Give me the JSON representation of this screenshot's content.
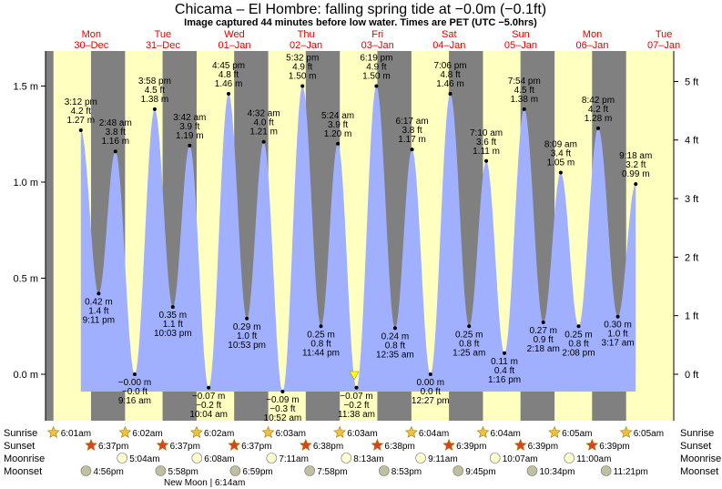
{
  "header": {
    "title": "Chicama – El Hombre: falling  spring tide at −0.0m (−0.1ft)",
    "subtitle": "Image captured 44 minutes before low water. Times are PET (UTC −5.0hrs)"
  },
  "colors": {
    "night": "#808080",
    "day": "#ffffc0",
    "tide": "#a0b0ff",
    "date_text": "#e00000",
    "sun_marker": "#f0c040",
    "sunset_marker": "#e04020",
    "moonrise_marker": "#ffffd0",
    "moonset_marker": "#c0c0a0",
    "now_marker": "#ffff00"
  },
  "days": [
    {
      "dow": "Mon",
      "date": "30–Dec"
    },
    {
      "dow": "Tue",
      "date": "31–Dec"
    },
    {
      "dow": "Wed",
      "date": "01–Jan"
    },
    {
      "dow": "Thu",
      "date": "02–Jan"
    },
    {
      "dow": "Fri",
      "date": "03–Jan"
    },
    {
      "dow": "Sat",
      "date": "04–Jan"
    },
    {
      "dow": "Sun",
      "date": "05–Jan"
    },
    {
      "dow": "Mon",
      "date": "06–Jan"
    },
    {
      "dow": "Tue",
      "date": "07–Jan"
    }
  ],
  "chart_data": {
    "type": "area",
    "title": "Chicama – El Hombre: falling  spring tide at −0.0m (−0.1ft)",
    "y_left_unit": "m",
    "y_right_unit": "ft",
    "ylim_m": [
      -0.28,
      1.7
    ],
    "y_left_ticks": [
      {
        "v": 0.0,
        "label": "0.0 m"
      },
      {
        "v": 0.5,
        "label": "0.5 m"
      },
      {
        "v": 1.0,
        "label": "1.0 m"
      },
      {
        "v": 1.5,
        "label": "1.5 m"
      }
    ],
    "y_right_ticks": [
      {
        "v": 0,
        "label": "0 ft"
      },
      {
        "v": 1,
        "label": "1 ft"
      },
      {
        "v": 2,
        "label": "2 ft"
      },
      {
        "v": 3,
        "label": "3 ft"
      },
      {
        "v": 4,
        "label": "4 ft"
      },
      {
        "v": 5,
        "label": "5 ft"
      }
    ],
    "tides": [
      {
        "type": "high",
        "day": 0,
        "time": "3:12 pm",
        "ft": "4.2 ft",
        "m": 1.27,
        "m_label": "1.27 m"
      },
      {
        "type": "low",
        "day": 0,
        "time": "9:11 pm",
        "ft": "1.4 ft",
        "m": 0.42,
        "m_label": "0.42 m"
      },
      {
        "type": "high",
        "day": 1,
        "time": "2:48 am",
        "ft": "3.8 ft",
        "m": 1.16,
        "m_label": "1.16 m"
      },
      {
        "type": "low",
        "day": 1,
        "time": "9:16 am",
        "ft": "−0.0 ft",
        "m": -0.0,
        "m_label": "−0.00 m"
      },
      {
        "type": "high",
        "day": 1,
        "time": "3:58 pm",
        "ft": "4.5 ft",
        "m": 1.38,
        "m_label": "1.38 m"
      },
      {
        "type": "low",
        "day": 1,
        "time": "10:03 pm",
        "ft": "1.1 ft",
        "m": 0.35,
        "m_label": "0.35 m"
      },
      {
        "type": "high",
        "day": 2,
        "time": "3:42 am",
        "ft": "3.9 ft",
        "m": 1.19,
        "m_label": "1.19 m"
      },
      {
        "type": "low",
        "day": 2,
        "time": "10:04 am",
        "ft": "−0.2 ft",
        "m": -0.07,
        "m_label": "−0.07 m"
      },
      {
        "type": "high",
        "day": 2,
        "time": "4:45 pm",
        "ft": "4.8 ft",
        "m": 1.46,
        "m_label": "1.46 m"
      },
      {
        "type": "low",
        "day": 2,
        "time": "10:53 pm",
        "ft": "1.0 ft",
        "m": 0.29,
        "m_label": "0.29 m"
      },
      {
        "type": "high",
        "day": 3,
        "time": "4:32 am",
        "ft": "4.0 ft",
        "m": 1.21,
        "m_label": "1.21 m"
      },
      {
        "type": "low",
        "day": 3,
        "time": "10:52 am",
        "ft": "−0.3 ft",
        "m": -0.09,
        "m_label": "−0.09 m"
      },
      {
        "type": "high",
        "day": 3,
        "time": "5:32 pm",
        "ft": "4.9 ft",
        "m": 1.5,
        "m_label": "1.50 m"
      },
      {
        "type": "low",
        "day": 3,
        "time": "11:44 pm",
        "ft": "0.8 ft",
        "m": 0.25,
        "m_label": "0.25 m"
      },
      {
        "type": "high",
        "day": 4,
        "time": "5:24 am",
        "ft": "3.9 ft",
        "m": 1.2,
        "m_label": "1.20 m"
      },
      {
        "type": "low",
        "day": 4,
        "time": "11:38 am",
        "ft": "−0.2 ft",
        "m": -0.07,
        "m_label": "−0.07 m"
      },
      {
        "type": "high",
        "day": 4,
        "time": "6:19 pm",
        "ft": "4.9 ft",
        "m": 1.5,
        "m_label": "1.50 m"
      },
      {
        "type": "low",
        "day": 5,
        "time": "12:35 am",
        "ft": "0.8 ft",
        "m": 0.24,
        "m_label": "0.24 m"
      },
      {
        "type": "high",
        "day": 5,
        "time": "6:17 am",
        "ft": "3.8 ft",
        "m": 1.17,
        "m_label": "1.17 m"
      },
      {
        "type": "low",
        "day": 5,
        "time": "12:27 pm",
        "ft": "0.0 ft",
        "m": 0.0,
        "m_label": "0.00 m"
      },
      {
        "type": "high",
        "day": 5,
        "time": "7:06 pm",
        "ft": "4.8 ft",
        "m": 1.46,
        "m_label": "1.46 m"
      },
      {
        "type": "low",
        "day": 6,
        "time": "1:25 am",
        "ft": "0.8 ft",
        "m": 0.25,
        "m_label": "0.25 m"
      },
      {
        "type": "high",
        "day": 6,
        "time": "7:10 am",
        "ft": "3.6 ft",
        "m": 1.11,
        "m_label": "1.11 m"
      },
      {
        "type": "low",
        "day": 6,
        "time": "1:16 pm",
        "ft": "0.4 ft",
        "m": 0.11,
        "m_label": "0.11 m"
      },
      {
        "type": "high",
        "day": 6,
        "time": "7:54 pm",
        "ft": "4.5 ft",
        "m": 1.38,
        "m_label": "1.38 m"
      },
      {
        "type": "low",
        "day": 7,
        "time": "2:18 am",
        "ft": "0.9 ft",
        "m": 0.27,
        "m_label": "0.27 m"
      },
      {
        "type": "high",
        "day": 7,
        "time": "8:09 am",
        "ft": "3.4 ft",
        "m": 1.05,
        "m_label": "1.05 m"
      },
      {
        "type": "low",
        "day": 7,
        "time": "2:08 pm",
        "ft": "0.8 ft",
        "m": 0.25,
        "m_label": "0.25 m"
      },
      {
        "type": "high",
        "day": 7,
        "time": "8:42 pm",
        "ft": "4.2 ft",
        "m": 1.28,
        "m_label": "1.28 m"
      },
      {
        "type": "low",
        "day": 8,
        "time": "3:17 am",
        "ft": "1.0 ft",
        "m": 0.3,
        "m_label": "0.30 m"
      },
      {
        "type": "high",
        "day": 8,
        "time": "9:18 am",
        "ft": "3.2 ft",
        "m": 0.99,
        "m_label": "0.99 m"
      }
    ],
    "now_marker": {
      "day": 4,
      "time": "10:54 am",
      "m": -0.0
    }
  },
  "sun_moon": {
    "row_labels": [
      "Sunrise",
      "Sunset",
      "Moonrise",
      "Moonset"
    ],
    "sunrise": [
      {
        "day": 0,
        "time": "6:01am"
      },
      {
        "day": 1,
        "time": "6:02am"
      },
      {
        "day": 2,
        "time": "6:02am"
      },
      {
        "day": 3,
        "time": "6:03am"
      },
      {
        "day": 4,
        "time": "6:03am"
      },
      {
        "day": 5,
        "time": "6:04am"
      },
      {
        "day": 6,
        "time": "6:04am"
      },
      {
        "day": 7,
        "time": "6:05am"
      },
      {
        "day": 8,
        "time": "6:05am"
      }
    ],
    "sunset": [
      {
        "day": 0,
        "time": "6:37pm"
      },
      {
        "day": 1,
        "time": "6:37pm"
      },
      {
        "day": 2,
        "time": "6:37pm"
      },
      {
        "day": 3,
        "time": "6:38pm"
      },
      {
        "day": 4,
        "time": "6:38pm"
      },
      {
        "day": 5,
        "time": "6:39pm"
      },
      {
        "day": 6,
        "time": "6:39pm"
      },
      {
        "day": 7,
        "time": "6:39pm"
      }
    ],
    "moonrise": [
      {
        "day": 1,
        "time": "5:04am"
      },
      {
        "day": 2,
        "time": "6:08am"
      },
      {
        "day": 3,
        "time": "7:11am"
      },
      {
        "day": 4,
        "time": "8:13am"
      },
      {
        "day": 5,
        "time": "9:11am"
      },
      {
        "day": 6,
        "time": "10:07am"
      },
      {
        "day": 7,
        "time": "11:00am"
      }
    ],
    "moonset": [
      {
        "day": 0,
        "time": "4:56pm"
      },
      {
        "day": 1,
        "time": "5:58pm"
      },
      {
        "day": 2,
        "time": "6:59pm"
      },
      {
        "day": 3,
        "time": "7:58pm"
      },
      {
        "day": 4,
        "time": "8:53pm"
      },
      {
        "day": 5,
        "time": "9:45pm"
      },
      {
        "day": 6,
        "time": "10:34pm"
      },
      {
        "day": 7,
        "time": "11:21pm"
      }
    ],
    "moon_phase_note": "New Moon | 6:14am"
  }
}
